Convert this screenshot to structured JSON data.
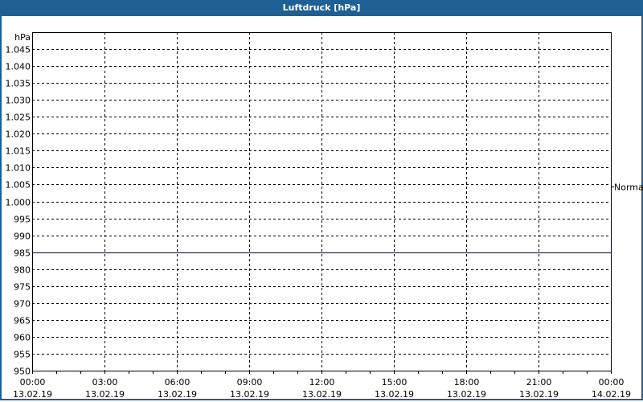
{
  "title": "Luftdruck [hPa]",
  "chart_data": {
    "type": "line",
    "title": "Luftdruck [hPa]",
    "ylabel": "hPa",
    "ylim": [
      950,
      1050
    ],
    "yticks": [
      "950",
      "955",
      "960",
      "965",
      "970",
      "975",
      "980",
      "985",
      "990",
      "995",
      "1.000",
      "1.005",
      "1.010",
      "1.015",
      "1.020",
      "1.025",
      "1.030",
      "1.035",
      "1.040",
      "1.045"
    ],
    "ytick_values": [
      950,
      955,
      960,
      965,
      970,
      975,
      980,
      985,
      990,
      995,
      1000,
      1005,
      1010,
      1015,
      1020,
      1025,
      1030,
      1035,
      1040,
      1045
    ],
    "xticks": [
      {
        "time": "00:00",
        "date": "13.02.19"
      },
      {
        "time": "03:00",
        "date": "13.02.19"
      },
      {
        "time": "06:00",
        "date": "13.02.19"
      },
      {
        "time": "09:00",
        "date": "13.02.19"
      },
      {
        "time": "12:00",
        "date": "13.02.19"
      },
      {
        "time": "15:00",
        "date": "13.02.19"
      },
      {
        "time": "18:00",
        "date": "13.02.19"
      },
      {
        "time": "21:00",
        "date": "13.02.19"
      },
      {
        "time": "00:00",
        "date": "14.02.19"
      }
    ],
    "xlim_hours": [
      0,
      24
    ],
    "grid": true,
    "series": [
      {
        "x_hours": [
          0,
          24
        ],
        "values": [
          985,
          985
        ],
        "color": "#000033"
      }
    ],
    "right_annotation": {
      "label": "Normal",
      "value": 1004.5
    }
  }
}
